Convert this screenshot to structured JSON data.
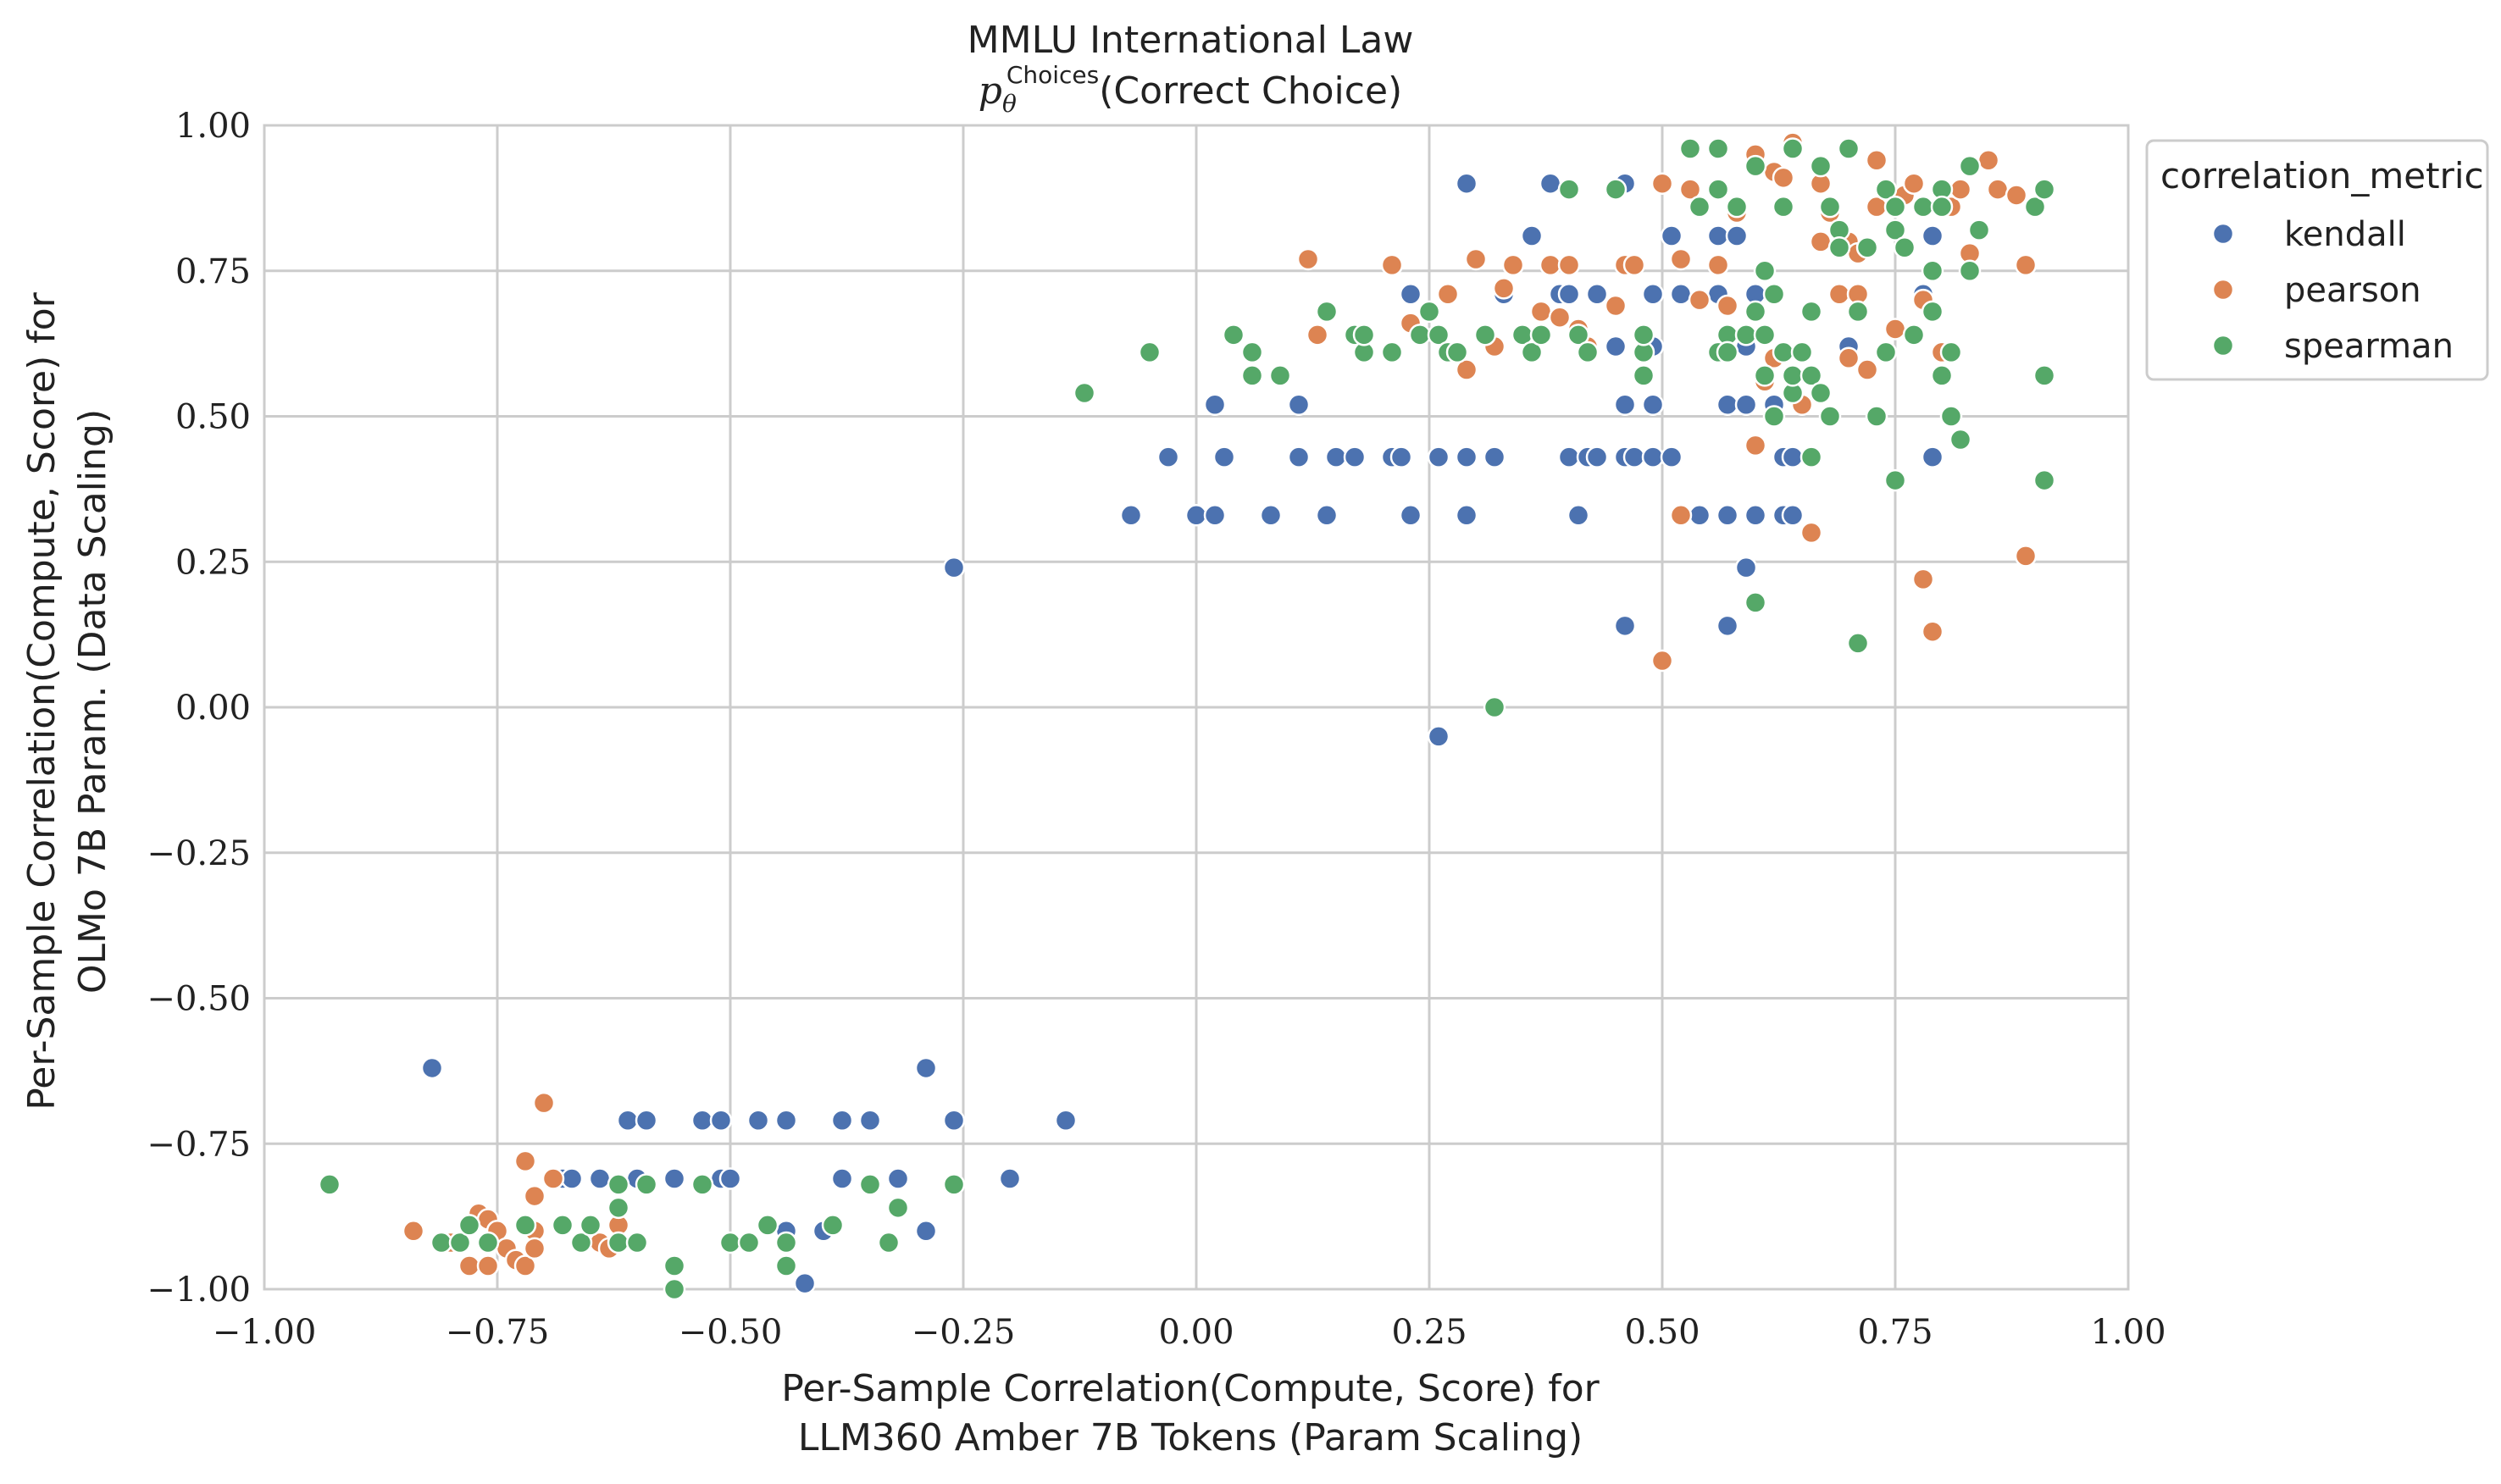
{
  "chart_data": {
    "type": "scatter",
    "title": "MMLU International Law",
    "subtitle_symbol": "p",
    "subtitle_sub": "θ",
    "subtitle_sup": "Choices",
    "subtitle_text": "(Correct Choice)",
    "xlabel": [
      "Per-Sample Correlation(Compute, Score) for",
      "LLM360 Amber 7B Tokens (Param Scaling)"
    ],
    "ylabel": [
      "Per-Sample Correlation(Compute, Score) for",
      "OLMo 7B Param. (Data Scaling)"
    ],
    "xlim": [
      -1.0,
      1.0
    ],
    "ylim": [
      -1.0,
      1.0
    ],
    "xticks": [
      -1.0,
      -0.75,
      -0.5,
      -0.25,
      0.0,
      0.25,
      0.5,
      0.75,
      1.0
    ],
    "yticks": [
      -1.0,
      -0.75,
      -0.5,
      -0.25,
      0.0,
      0.25,
      0.5,
      0.75,
      1.0
    ],
    "xtick_labels": [
      "−1.00",
      "−0.75",
      "−0.50",
      "−0.25",
      "0.00",
      "0.25",
      "0.50",
      "0.75",
      "1.00"
    ],
    "ytick_labels": [
      "−1.00",
      "−0.75",
      "−0.50",
      "−0.25",
      "0.00",
      "0.25",
      "0.50",
      "0.75",
      "1.00"
    ],
    "grid": true,
    "legend": {
      "title": "correlation_metric",
      "placement": "outside-top-right"
    },
    "series": [
      {
        "name": "kendall",
        "color": "#4c72b0",
        "points": [
          [
            -0.82,
            -0.62
          ],
          [
            -0.29,
            -0.62
          ],
          [
            -0.61,
            -0.71
          ],
          [
            -0.59,
            -0.71
          ],
          [
            -0.53,
            -0.71
          ],
          [
            -0.51,
            -0.71
          ],
          [
            -0.47,
            -0.71
          ],
          [
            -0.44,
            -0.71
          ],
          [
            -0.38,
            -0.71
          ],
          [
            -0.35,
            -0.71
          ],
          [
            -0.26,
            -0.71
          ],
          [
            -0.14,
            -0.71
          ],
          [
            -0.68,
            -0.81
          ],
          [
            -0.67,
            -0.81
          ],
          [
            -0.64,
            -0.81
          ],
          [
            -0.6,
            -0.81
          ],
          [
            -0.56,
            -0.81
          ],
          [
            -0.51,
            -0.81
          ],
          [
            -0.5,
            -0.81
          ],
          [
            -0.38,
            -0.81
          ],
          [
            -0.32,
            -0.81
          ],
          [
            -0.2,
            -0.81
          ],
          [
            -0.29,
            -0.9
          ],
          [
            -0.4,
            -0.9
          ],
          [
            -0.44,
            -0.9
          ],
          [
            -0.42,
            -0.99
          ],
          [
            -0.26,
            0.24
          ],
          [
            -0.07,
            0.33
          ],
          [
            0.0,
            0.33
          ],
          [
            0.02,
            0.33
          ],
          [
            0.08,
            0.33
          ],
          [
            0.14,
            0.33
          ],
          [
            0.23,
            0.33
          ],
          [
            0.29,
            0.33
          ],
          [
            0.41,
            0.33
          ],
          [
            0.52,
            0.33
          ],
          [
            0.54,
            0.33
          ],
          [
            0.57,
            0.33
          ],
          [
            0.6,
            0.33
          ],
          [
            0.63,
            0.33
          ],
          [
            0.64,
            0.33
          ],
          [
            -0.03,
            0.43
          ],
          [
            0.03,
            0.43
          ],
          [
            0.11,
            0.43
          ],
          [
            0.15,
            0.43
          ],
          [
            0.17,
            0.43
          ],
          [
            0.21,
            0.43
          ],
          [
            0.22,
            0.43
          ],
          [
            0.26,
            0.43
          ],
          [
            0.29,
            0.43
          ],
          [
            0.32,
            0.43
          ],
          [
            0.4,
            0.43
          ],
          [
            0.42,
            0.43
          ],
          [
            0.43,
            0.43
          ],
          [
            0.46,
            0.43
          ],
          [
            0.47,
            0.43
          ],
          [
            0.49,
            0.43
          ],
          [
            0.51,
            0.43
          ],
          [
            0.63,
            0.43
          ],
          [
            0.64,
            0.43
          ],
          [
            0.79,
            0.43
          ],
          [
            0.02,
            0.52
          ],
          [
            0.11,
            0.52
          ],
          [
            0.46,
            0.52
          ],
          [
            0.49,
            0.52
          ],
          [
            0.57,
            0.52
          ],
          [
            0.59,
            0.52
          ],
          [
            0.62,
            0.52
          ],
          [
            0.45,
            0.62
          ],
          [
            0.49,
            0.62
          ],
          [
            0.59,
            0.62
          ],
          [
            0.7,
            0.62
          ],
          [
            0.23,
            0.71
          ],
          [
            0.33,
            0.71
          ],
          [
            0.39,
            0.71
          ],
          [
            0.4,
            0.71
          ],
          [
            0.43,
            0.71
          ],
          [
            0.49,
            0.71
          ],
          [
            0.52,
            0.71
          ],
          [
            0.56,
            0.71
          ],
          [
            0.6,
            0.71
          ],
          [
            0.78,
            0.71
          ],
          [
            0.36,
            0.81
          ],
          [
            0.51,
            0.81
          ],
          [
            0.56,
            0.81
          ],
          [
            0.58,
            0.81
          ],
          [
            0.79,
            0.81
          ],
          [
            0.29,
            0.9
          ],
          [
            0.38,
            0.9
          ],
          [
            0.46,
            0.9
          ],
          [
            0.46,
            0.14
          ],
          [
            0.57,
            0.14
          ],
          [
            0.59,
            0.24
          ],
          [
            0.26,
            -0.05
          ]
        ]
      },
      {
        "name": "pearson",
        "color": "#dd8452",
        "points": [
          [
            -0.84,
            -0.9
          ],
          [
            -0.8,
            -0.92
          ],
          [
            -0.78,
            -0.96
          ],
          [
            -0.77,
            -0.87
          ],
          [
            -0.76,
            -0.88
          ],
          [
            -0.76,
            -0.92
          ],
          [
            -0.75,
            -0.9
          ],
          [
            -0.74,
            -0.93
          ],
          [
            -0.73,
            -0.95
          ],
          [
            -0.72,
            -0.96
          ],
          [
            -0.72,
            -0.78
          ],
          [
            -0.71,
            -0.84
          ],
          [
            -0.71,
            -0.9
          ],
          [
            -0.7,
            -0.68
          ],
          [
            -0.69,
            -0.81
          ],
          [
            -0.64,
            -0.92
          ],
          [
            -0.63,
            -0.93
          ],
          [
            -0.62,
            -0.89
          ],
          [
            -0.71,
            -0.93
          ],
          [
            -0.76,
            -0.96
          ],
          [
            0.12,
            0.77
          ],
          [
            0.13,
            0.64
          ],
          [
            0.21,
            0.76
          ],
          [
            0.23,
            0.66
          ],
          [
            0.27,
            0.71
          ],
          [
            0.29,
            0.58
          ],
          [
            0.3,
            0.77
          ],
          [
            0.32,
            0.62
          ],
          [
            0.33,
            0.72
          ],
          [
            0.34,
            0.76
          ],
          [
            0.37,
            0.68
          ],
          [
            0.38,
            0.76
          ],
          [
            0.39,
            0.67
          ],
          [
            0.4,
            0.76
          ],
          [
            0.41,
            0.65
          ],
          [
            0.42,
            0.62
          ],
          [
            0.45,
            0.69
          ],
          [
            0.46,
            0.76
          ],
          [
            0.47,
            0.76
          ],
          [
            0.5,
            0.9
          ],
          [
            0.52,
            0.77
          ],
          [
            0.53,
            0.89
          ],
          [
            0.54,
            0.7
          ],
          [
            0.54,
            0.86
          ],
          [
            0.56,
            0.76
          ],
          [
            0.57,
            0.69
          ],
          [
            0.58,
            0.85
          ],
          [
            0.6,
            0.45
          ],
          [
            0.6,
            0.95
          ],
          [
            0.61,
            0.56
          ],
          [
            0.62,
            0.92
          ],
          [
            0.62,
            0.6
          ],
          [
            0.63,
            0.91
          ],
          [
            0.64,
            0.97
          ],
          [
            0.65,
            0.52
          ],
          [
            0.66,
            0.3
          ],
          [
            0.67,
            0.8
          ],
          [
            0.67,
            0.9
          ],
          [
            0.68,
            0.85
          ],
          [
            0.69,
            0.71
          ],
          [
            0.7,
            0.6
          ],
          [
            0.7,
            0.8
          ],
          [
            0.71,
            0.78
          ],
          [
            0.71,
            0.71
          ],
          [
            0.72,
            0.58
          ],
          [
            0.73,
            0.86
          ],
          [
            0.73,
            0.94
          ],
          [
            0.75,
            0.65
          ],
          [
            0.76,
            0.88
          ],
          [
            0.77,
            0.9
          ],
          [
            0.78,
            0.7
          ],
          [
            0.78,
            0.22
          ],
          [
            0.79,
            0.13
          ],
          [
            0.8,
            0.61
          ],
          [
            0.81,
            0.86
          ],
          [
            0.82,
            0.89
          ],
          [
            0.83,
            0.78
          ],
          [
            0.85,
            0.94
          ],
          [
            0.86,
            0.89
          ],
          [
            0.88,
            0.88
          ],
          [
            0.89,
            0.26
          ],
          [
            0.89,
            0.76
          ],
          [
            0.9,
            0.86
          ],
          [
            0.5,
            0.08
          ],
          [
            0.52,
            0.33
          ]
        ]
      },
      {
        "name": "spearman",
        "color": "#55a868",
        "points": [
          [
            -0.93,
            -0.82
          ],
          [
            -0.81,
            -0.92
          ],
          [
            -0.79,
            -0.92
          ],
          [
            -0.78,
            -0.89
          ],
          [
            -0.76,
            -0.92
          ],
          [
            -0.72,
            -0.89
          ],
          [
            -0.68,
            -0.89
          ],
          [
            -0.66,
            -0.92
          ],
          [
            -0.65,
            -0.89
          ],
          [
            -0.62,
            -0.92
          ],
          [
            -0.6,
            -0.92
          ],
          [
            -0.62,
            -0.82
          ],
          [
            -0.62,
            -0.86
          ],
          [
            -0.59,
            -0.82
          ],
          [
            -0.56,
            -0.96
          ],
          [
            -0.56,
            -1.0
          ],
          [
            -0.53,
            -0.82
          ],
          [
            -0.5,
            -0.92
          ],
          [
            -0.48,
            -0.92
          ],
          [
            -0.46,
            -0.89
          ],
          [
            -0.44,
            -0.92
          ],
          [
            -0.44,
            -0.96
          ],
          [
            -0.39,
            -0.89
          ],
          [
            -0.35,
            -0.82
          ],
          [
            -0.33,
            -0.92
          ],
          [
            -0.32,
            -0.86
          ],
          [
            -0.26,
            -0.82
          ],
          [
            -0.12,
            0.54
          ],
          [
            -0.05,
            0.61
          ],
          [
            0.04,
            0.64
          ],
          [
            0.06,
            0.61
          ],
          [
            0.06,
            0.57
          ],
          [
            0.09,
            0.57
          ],
          [
            0.14,
            0.68
          ],
          [
            0.17,
            0.64
          ],
          [
            0.18,
            0.61
          ],
          [
            0.18,
            0.64
          ],
          [
            0.21,
            0.61
          ],
          [
            0.24,
            0.64
          ],
          [
            0.25,
            0.68
          ],
          [
            0.26,
            0.64
          ],
          [
            0.27,
            0.61
          ],
          [
            0.28,
            0.61
          ],
          [
            0.31,
            0.64
          ],
          [
            0.35,
            0.64
          ],
          [
            0.36,
            0.61
          ],
          [
            0.37,
            0.64
          ],
          [
            0.4,
            0.89
          ],
          [
            0.41,
            0.64
          ],
          [
            0.42,
            0.61
          ],
          [
            0.45,
            0.89
          ],
          [
            0.48,
            0.61
          ],
          [
            0.48,
            0.57
          ],
          [
            0.48,
            0.64
          ],
          [
            0.53,
            0.96
          ],
          [
            0.54,
            0.86
          ],
          [
            0.56,
            0.96
          ],
          [
            0.56,
            0.89
          ],
          [
            0.56,
            0.61
          ],
          [
            0.57,
            0.64
          ],
          [
            0.57,
            0.61
          ],
          [
            0.58,
            0.86
          ],
          [
            0.59,
            0.64
          ],
          [
            0.6,
            0.68
          ],
          [
            0.61,
            0.75
          ],
          [
            0.61,
            0.64
          ],
          [
            0.61,
            0.57
          ],
          [
            0.62,
            0.5
          ],
          [
            0.62,
            0.71
          ],
          [
            0.63,
            0.61
          ],
          [
            0.63,
            0.86
          ],
          [
            0.64,
            0.54
          ],
          [
            0.64,
            0.57
          ],
          [
            0.64,
            0.96
          ],
          [
            0.65,
            0.61
          ],
          [
            0.66,
            0.68
          ],
          [
            0.66,
            0.57
          ],
          [
            0.66,
            0.43
          ],
          [
            0.67,
            0.93
          ],
          [
            0.67,
            0.54
          ],
          [
            0.68,
            0.5
          ],
          [
            0.68,
            0.86
          ],
          [
            0.69,
            0.82
          ],
          [
            0.69,
            0.79
          ],
          [
            0.7,
            0.96
          ],
          [
            0.71,
            0.68
          ],
          [
            0.71,
            0.11
          ],
          [
            0.72,
            0.79
          ],
          [
            0.73,
            0.5
          ],
          [
            0.74,
            0.89
          ],
          [
            0.74,
            0.61
          ],
          [
            0.75,
            0.39
          ],
          [
            0.75,
            0.86
          ],
          [
            0.75,
            0.82
          ],
          [
            0.76,
            0.79
          ],
          [
            0.77,
            0.64
          ],
          [
            0.78,
            0.86
          ],
          [
            0.79,
            0.75
          ],
          [
            0.79,
            0.68
          ],
          [
            0.8,
            0.89
          ],
          [
            0.8,
            0.57
          ],
          [
            0.8,
            0.86
          ],
          [
            0.81,
            0.5
          ],
          [
            0.81,
            0.61
          ],
          [
            0.82,
            0.46
          ],
          [
            0.83,
            0.93
          ],
          [
            0.83,
            0.75
          ],
          [
            0.84,
            0.82
          ],
          [
            0.9,
            0.86
          ],
          [
            0.91,
            0.89
          ],
          [
            0.91,
            0.57
          ],
          [
            0.91,
            0.39
          ],
          [
            0.32,
            0.0
          ],
          [
            0.6,
            0.18
          ],
          [
            0.6,
            0.93
          ]
        ]
      }
    ]
  }
}
